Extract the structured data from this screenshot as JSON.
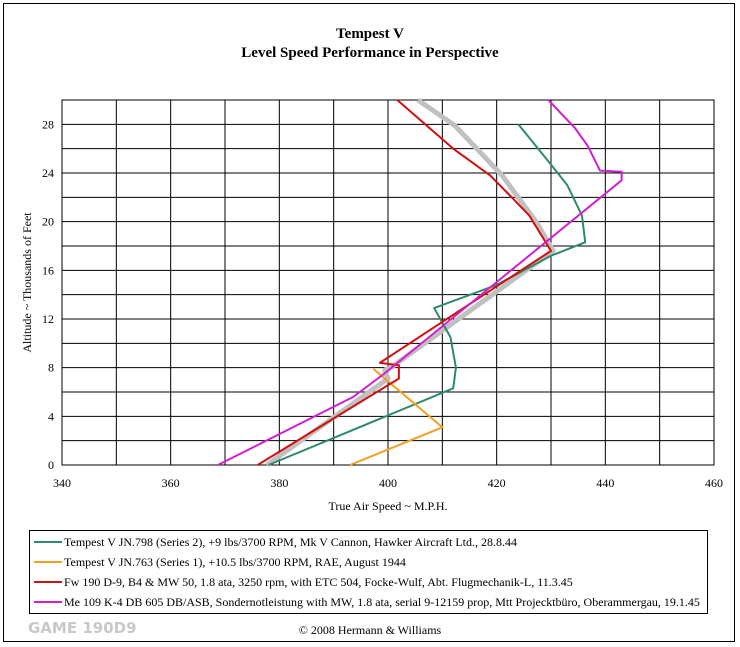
{
  "chart_data": {
    "type": "line",
    "title": "Tempest V",
    "subtitle": "Level Speed Performance in Perspective",
    "xlabel": "True Air Speed ~ M.P.H.",
    "ylabel": "Altitude ~ Thousands of Feet",
    "xlim": [
      340,
      460
    ],
    "ylim": [
      0,
      30
    ],
    "xticks": [
      340,
      360,
      380,
      400,
      420,
      440,
      460
    ],
    "yticks": [
      0,
      4,
      8,
      12,
      16,
      20,
      24,
      28
    ],
    "grid": true,
    "legend_placement": "bottom",
    "series": [
      {
        "name": "Tempest V JN.798 (Series 2), +9 lbs/3700 RPM, Mk V Cannon, Hawker Aircraft Ltd., 28.8.44",
        "color": "#2e8b6a",
        "points": [
          [
            378,
            0
          ],
          [
            412,
            6.3
          ],
          [
            412.5,
            8
          ],
          [
            411.5,
            10.5
          ],
          [
            408.5,
            12.9
          ],
          [
            420,
            14.8
          ],
          [
            430,
            17.2
          ],
          [
            436.3,
            18.3
          ],
          [
            435.7,
            20.5
          ],
          [
            433,
            23
          ],
          [
            429.8,
            24.8
          ],
          [
            424,
            28
          ]
        ]
      },
      {
        "name": "Tempest V JN.763 (Series 1), +10.5 lbs/3700 RPM, RAE, August 1944",
        "color": "#f0a020",
        "points": [
          [
            393,
            0
          ],
          [
            410,
            3.1
          ],
          [
            397.3,
            7.9
          ]
        ]
      },
      {
        "name": "Fw 190 D-9, B4 & MW 50, 1.8 ata, 3250 rpm, with ETC 504, Focke-Wulf, Abt. Flugmechanik-L, 11.3.45",
        "color": "#d01010",
        "points": [
          [
            376,
            0
          ],
          [
            400.5,
            6.7
          ],
          [
            402,
            7.1
          ],
          [
            402,
            8.2
          ],
          [
            398.5,
            8.4
          ],
          [
            430,
            17.6
          ],
          [
            426,
            20.5
          ],
          [
            423,
            21.9
          ],
          [
            418.8,
            23.8
          ],
          [
            412,
            26
          ],
          [
            401.7,
            30
          ]
        ]
      },
      {
        "name": "Me 109 K-4 DB 605 DB/ASB, Sondernotleistung with MW, 1.8 ata, serial 9-12159 prop, Mtt Projecktbüro, Oberammergau, 19.1.45",
        "color": "#d020d0",
        "points": [
          [
            368.7,
            0
          ],
          [
            393.6,
            5.6
          ],
          [
            399,
            7.4
          ],
          [
            443,
            23.4
          ],
          [
            443,
            24.1
          ],
          [
            439,
            24.2
          ],
          [
            436.8,
            26.2
          ],
          [
            434.4,
            27.7
          ],
          [
            429.5,
            30
          ]
        ]
      },
      {
        "color": "#c0c0c0",
        "points": [
          [
            377.7,
            0
          ],
          [
            400,
            7.1
          ],
          [
            399.4,
            7.8
          ],
          [
            400.5,
            8
          ],
          [
            430.4,
            17.6
          ],
          [
            427.4,
            19.9
          ],
          [
            421,
            23.8
          ],
          [
            412.3,
            27.9
          ],
          [
            405.5,
            30
          ]
        ]
      }
    ]
  },
  "watermark": "GAME 190D9",
  "copyright": "© 2008 Hermann & Williams"
}
